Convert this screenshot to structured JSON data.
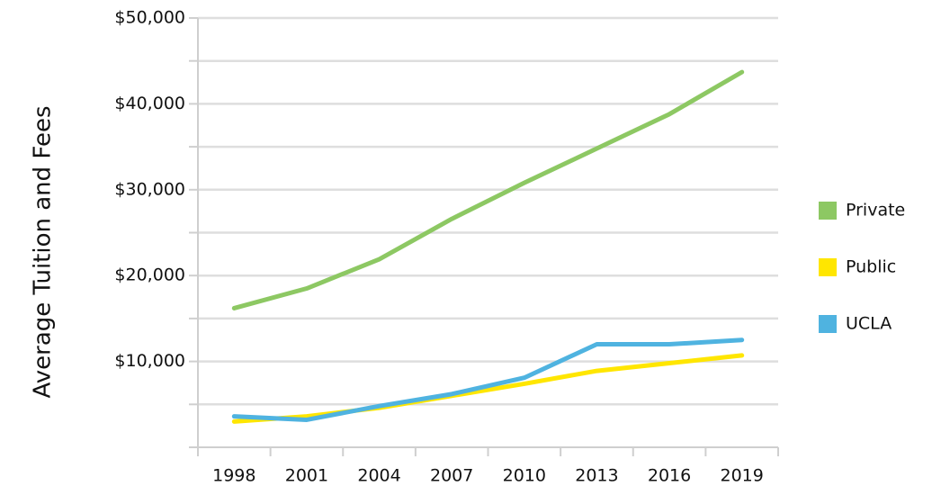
{
  "chart_data": {
    "type": "line",
    "y_label": "Average Tuition and Fees",
    "categories": [
      "1998",
      "2001",
      "2004",
      "2007",
      "2010",
      "2013",
      "2016",
      "2019"
    ],
    "series": [
      {
        "name": "Private",
        "color": "#8dc863",
        "values": [
          16200,
          18500,
          21900,
          26600,
          30800,
          34800,
          38800,
          43700
        ]
      },
      {
        "name": "Public",
        "color": "#ffe600",
        "values": [
          3000,
          3600,
          4600,
          6000,
          7400,
          8900,
          9800,
          10700
        ]
      },
      {
        "name": "UCLA",
        "color": "#4fb3e0",
        "values": [
          3600,
          3200,
          4800,
          6200,
          8100,
          12000,
          12000,
          12500
        ]
      }
    ],
    "ylim": [
      0,
      50000
    ],
    "yticks": [
      {
        "value": 10000,
        "label": "$10,000"
      },
      {
        "value": 20000,
        "label": "$20,000"
      },
      {
        "value": 30000,
        "label": "$30,000"
      },
      {
        "value": 40000,
        "label": "$40,000"
      },
      {
        "value": 50000,
        "label": "$50,000"
      }
    ],
    "minor_yticks": [
      5000,
      15000,
      25000,
      35000,
      45000
    ],
    "grid": true,
    "legend": "right"
  }
}
